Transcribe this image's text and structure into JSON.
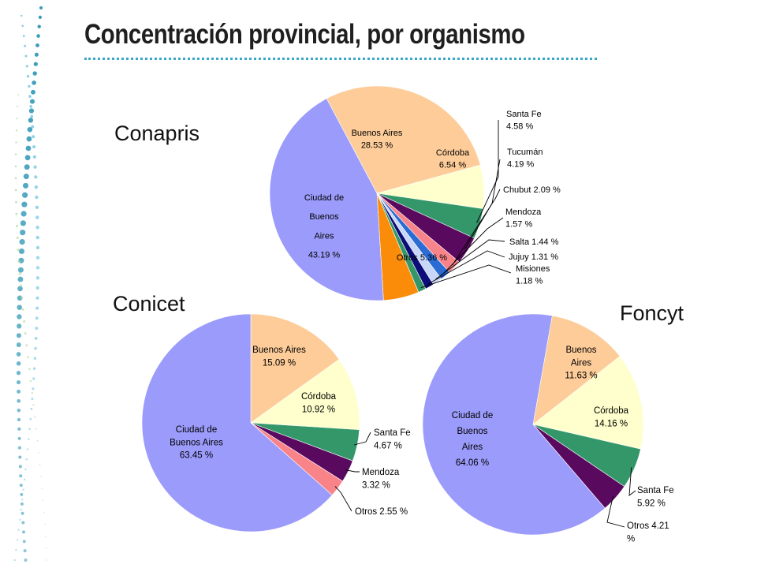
{
  "slide": {
    "title": "Concentración provincial, por organismo"
  },
  "colors": {
    "accent": "#3aa8c8",
    "ciudad": "#9b9bfb",
    "buenos_aires": "#fdcc99",
    "cordoba": "#feffcc",
    "santa_fe": "#34976a",
    "tucuman": "#5a0a5e",
    "chubut": "#5a0a5e",
    "mendoza": "#f8848a",
    "salta": "#2b6bd4",
    "jujuy": "#c8d6f8",
    "misiones": "#0c0c7a",
    "otros": "#fa8c0a"
  },
  "chart_data": [
    {
      "type": "pie",
      "title": "Conapris",
      "slices": [
        {
          "label": "Buenos Aires",
          "value": "28.53 %",
          "pct": 28.53,
          "color": "#fdcc99"
        },
        {
          "label": "Córdoba",
          "value": "6.54 %",
          "pct": 6.54,
          "color": "#feffcc"
        },
        {
          "label": "Santa Fe",
          "value": "4.58 %",
          "pct": 4.58,
          "color": "#34976a"
        },
        {
          "label": "Tucumán",
          "value": "4.19 %",
          "pct": 4.19,
          "color": "#5a0a5e"
        },
        {
          "label": "Chubut",
          "value": "2.09 %",
          "pct": 2.09,
          "color": "#f8848a"
        },
        {
          "label": "Mendoza",
          "value": "1.57 %",
          "pct": 1.57,
          "color": "#2b6bd4"
        },
        {
          "label": "Salta",
          "value": "1.44 %",
          "pct": 1.44,
          "color": "#c8d6f8"
        },
        {
          "label": "Jujuy",
          "value": "1.31 %",
          "pct": 1.31,
          "color": "#0c0c7a"
        },
        {
          "label": "Misiones",
          "value": "1.18 %",
          "pct": 1.18,
          "color": "#34976a"
        },
        {
          "label": "Otros",
          "value": "5.36 %",
          "pct": 5.36,
          "color": "#fa8c0a"
        },
        {
          "label": "Ciudad de Buenos Aires",
          "value": "43.19 %",
          "pct": 43.19,
          "color": "#9b9bfb"
        }
      ],
      "text_labels": [
        {
          "key": "Buenos Aires",
          "lines": [
            "Buenos Aires",
            "28.53 %"
          ]
        },
        {
          "key": "Córdoba",
          "lines": [
            "Córdoba",
            "6.54 %"
          ]
        },
        {
          "key": "Santa Fe",
          "lines": [
            "Santa Fe",
            "4.58 %"
          ]
        },
        {
          "key": "Tucumán",
          "lines": [
            "Tucumán",
            "4.19 %"
          ]
        },
        {
          "key": "Chubut",
          "lines": [
            "Chubut 2.09 %"
          ]
        },
        {
          "key": "Mendoza",
          "lines": [
            "Mendoza",
            "1.57 %"
          ]
        },
        {
          "key": "Salta",
          "lines": [
            "Salta 1.44 %"
          ]
        },
        {
          "key": "Jujuy",
          "lines": [
            "Jujuy 1.31 %"
          ]
        },
        {
          "key": "Misiones",
          "lines": [
            "Misiones",
            "1.18 %"
          ]
        },
        {
          "key": "Otros",
          "lines": [
            "Otros 5.36 %"
          ]
        },
        {
          "key": "Ciudad de Buenos Aires",
          "lines": [
            "Ciudad de",
            "Buenos",
            "Aires",
            "43.19 %"
          ]
        }
      ]
    },
    {
      "type": "pie",
      "title": "Conicet",
      "slices": [
        {
          "label": "Buenos Aires",
          "value": "15.09 %",
          "pct": 15.09,
          "color": "#fdcc99"
        },
        {
          "label": "Córdoba",
          "value": "10.92 %",
          "pct": 10.92,
          "color": "#feffcc"
        },
        {
          "label": "Santa Fe",
          "value": "4.67 %",
          "pct": 4.67,
          "color": "#34976a"
        },
        {
          "label": "Mendoza",
          "value": "3.32 %",
          "pct": 3.32,
          "color": "#5a0a5e"
        },
        {
          "label": "Otros",
          "value": "2.55 %",
          "pct": 2.55,
          "color": "#f8848a"
        },
        {
          "label": "Ciudad de Buenos Aires",
          "value": "63.45 %",
          "pct": 63.45,
          "color": "#9b9bfb"
        }
      ],
      "text_labels": [
        {
          "key": "Buenos Aires",
          "lines": [
            "Buenos Aires",
            "15.09 %"
          ]
        },
        {
          "key": "Córdoba",
          "lines": [
            "Córdoba",
            "10.92 %"
          ]
        },
        {
          "key": "Santa Fe",
          "lines": [
            "Santa Fe",
            "4.67 %"
          ]
        },
        {
          "key": "Mendoza",
          "lines": [
            "Mendoza",
            "3.32 %"
          ]
        },
        {
          "key": "Otros",
          "lines": [
            "Otros 2.55 %"
          ]
        },
        {
          "key": "Ciudad de Buenos Aires",
          "lines": [
            "Ciudad de",
            "Buenos Aires",
            "63.45 %"
          ]
        }
      ]
    },
    {
      "type": "pie",
      "title": "Foncyt",
      "slices": [
        {
          "label": "Buenos Aires",
          "value": "11.63 %",
          "pct": 11.63,
          "color": "#fdcc99"
        },
        {
          "label": "Córdoba",
          "value": "14.16 %",
          "pct": 14.16,
          "color": "#feffcc"
        },
        {
          "label": "Santa Fe",
          "value": "5.92 %",
          "pct": 5.92,
          "color": "#34976a"
        },
        {
          "label": "Otros",
          "value": "4.21 %",
          "pct": 4.21,
          "color": "#5a0a5e"
        },
        {
          "label": "Ciudad de Buenos Aires",
          "value": "64.06 %",
          "pct": 64.06,
          "color": "#9b9bfb"
        }
      ],
      "text_labels": [
        {
          "key": "Buenos Aires",
          "lines": [
            "Buenos",
            "Aires",
            "11.63 %"
          ]
        },
        {
          "key": "Córdoba",
          "lines": [
            "Córdoba",
            "14.16 %"
          ]
        },
        {
          "key": "Santa Fe",
          "lines": [
            "Santa Fe",
            "5.92 %"
          ]
        },
        {
          "key": "Otros",
          "lines": [
            "Otros 4.21",
            "%"
          ]
        },
        {
          "key": "Ciudad de Buenos Aires",
          "lines": [
            "Ciudad de",
            "Buenos",
            "Aires",
            "64.06 %"
          ]
        }
      ]
    }
  ]
}
